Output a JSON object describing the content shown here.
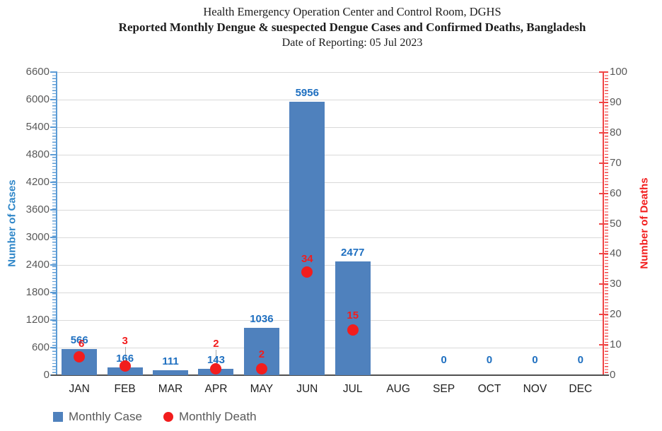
{
  "header": {
    "line1": "Health Emergency Operation Center and Control Room, DGHS",
    "line2": "Reported Monthly Dengue & suespected Dengue Cases and Confirmed Deaths, Bangladesh",
    "line3": "Date of Reporting: 05 Jul 2023"
  },
  "legend": {
    "items": [
      {
        "label": "Monthly Case",
        "marker": "square",
        "color": "#4f81bd"
      },
      {
        "label": "Monthly Death",
        "marker": "circle",
        "color": "#f21d1d"
      }
    ]
  },
  "chart_data": {
    "type": "combo-bar-scatter",
    "categories": [
      "JAN",
      "FEB",
      "MAR",
      "APR",
      "MAY",
      "JUN",
      "JUL",
      "AUG",
      "SEP",
      "OCT",
      "NOV",
      "DEC"
    ],
    "series": [
      {
        "name": "Monthly Case",
        "type": "bar",
        "axis": "left",
        "color": "#4f81bd",
        "label_color": "#1e6fc0",
        "values": [
          566,
          166,
          111,
          143,
          1036,
          5956,
          2477,
          0,
          0,
          0,
          0,
          0
        ],
        "data_labels": [
          "566",
          "166",
          "111",
          "143",
          "1036",
          "5956",
          "2477",
          "",
          "0",
          "0",
          "0",
          "0"
        ]
      },
      {
        "name": "Monthly Death",
        "type": "scatter",
        "axis": "right",
        "color": "#f21d1d",
        "label_color": "#f21d1d",
        "values": [
          6,
          3,
          null,
          2,
          2,
          34,
          15,
          null,
          null,
          null,
          null,
          null
        ],
        "data_labels": [
          "6",
          "3",
          "",
          "2",
          "2",
          "34",
          "15",
          "",
          "",
          "",
          "",
          ""
        ]
      }
    ],
    "left_axis": {
      "title": "Number of Cases",
      "min": 0,
      "max": 6600,
      "step": 600,
      "title_color": "#2e86c8",
      "line_color": "#5b9bd5",
      "tick_label_color": "#595959"
    },
    "right_axis": {
      "title": "Number of Deaths",
      "min": 0,
      "max": 100,
      "step": 10,
      "title_color": "#f21d1d",
      "line_color": "#f04545",
      "tick_label_color": "#595959"
    },
    "gridline_color": "#d9d9d9",
    "grid": true,
    "legend_position": "bottom-left"
  }
}
